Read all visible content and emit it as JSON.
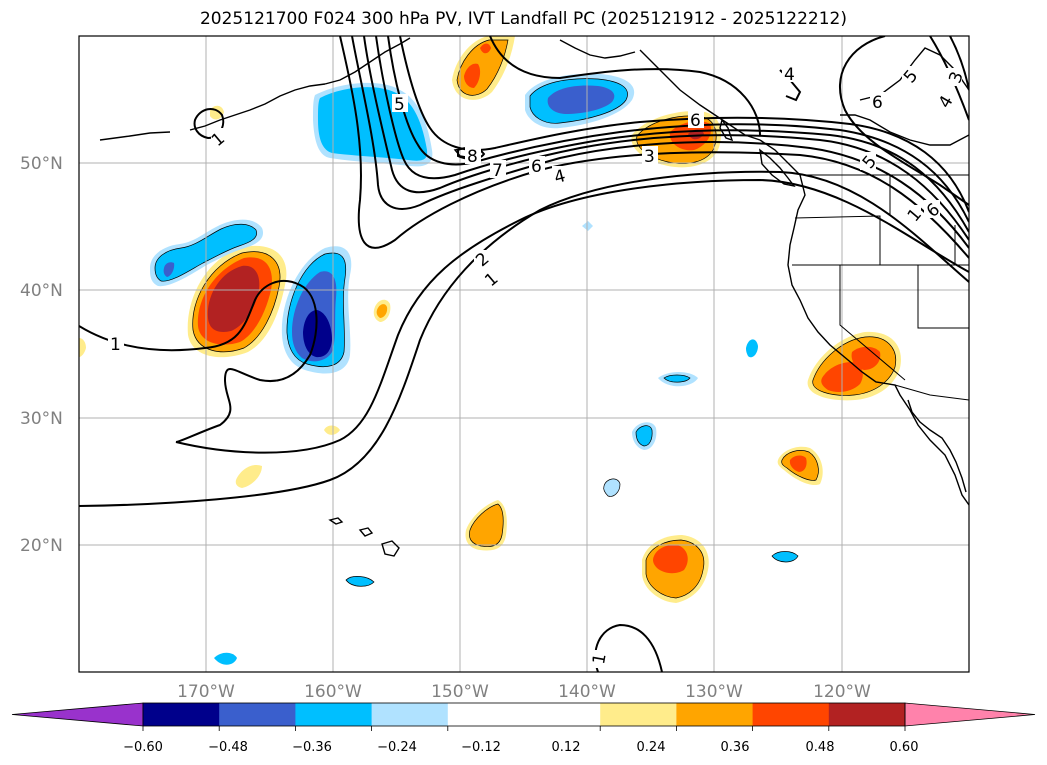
{
  "title": "2025121700 F024 300 hPa PV, IVT Landfall PC (2025121912 - 2025122212)",
  "chart_data": {
    "type": "map",
    "variables": [
      "300 hPa PV (contours)",
      "IVT Landfall PC (shaded)"
    ],
    "extent": {
      "lon_min": -180,
      "lon_max": -110,
      "lat_min": 10,
      "lat_max": 60
    },
    "lat_ticks": [
      {
        "value": 50,
        "label": "50°N"
      },
      {
        "value": 40,
        "label": "40°N"
      },
      {
        "value": 30,
        "label": "30°N"
      },
      {
        "value": 20,
        "label": "20°N"
      }
    ],
    "lon_ticks": [
      {
        "value": -170,
        "label": "170°W"
      },
      {
        "value": -160,
        "label": "160°W"
      },
      {
        "value": -150,
        "label": "150°W"
      },
      {
        "value": -140,
        "label": "140°W"
      },
      {
        "value": -130,
        "label": "130°W"
      },
      {
        "value": -120,
        "label": "120°W"
      }
    ],
    "colorbar": {
      "levels": [
        -0.72,
        -0.6,
        -0.48,
        -0.36,
        -0.24,
        -0.12,
        0.12,
        0.24,
        0.36,
        0.48,
        0.6,
        0.72
      ],
      "tick_labels": [
        "−0.60",
        "−0.48",
        "−0.36",
        "−0.24",
        "−0.12",
        "0.12",
        "0.24",
        "0.36",
        "0.48",
        "0.60"
      ],
      "colors": [
        "#9932cc",
        "#00008b",
        "#3a5fcd",
        "#00bfff",
        "#b0e2ff",
        "#ffffff",
        "#ffec8b",
        "#ffa500",
        "#ff4500",
        "#b22222",
        "#ff82ab"
      ],
      "extend": "both"
    },
    "pv_contour_labels": [
      "1",
      "1",
      "1",
      "2",
      "1",
      "3",
      "4",
      "4",
      "5",
      "6",
      "7",
      "8",
      "5",
      "6",
      "5",
      "4",
      "3",
      "6",
      "6",
      "1"
    ],
    "shaded_features": [
      {
        "sign": "positive",
        "max": 0.48,
        "center": [
          -167.5,
          39.0
        ]
      },
      {
        "sign": "negative",
        "min": -0.6,
        "center": [
          -161.5,
          37.0
        ]
      },
      {
        "sign": "negative",
        "min": -0.36,
        "center": [
          -167.0,
          43.0
        ]
      },
      {
        "sign": "negative",
        "min": -0.36,
        "center": [
          -157.0,
          53.0
        ]
      },
      {
        "sign": "negative",
        "min": -0.48,
        "center": [
          -139.5,
          55.0
        ]
      },
      {
        "sign": "positive",
        "max": 0.36,
        "center": [
          -149.0,
          57.0
        ]
      },
      {
        "sign": "positive",
        "max": 0.48,
        "center": [
          -131.5,
          52.0
        ]
      },
      {
        "sign": "positive",
        "max": 0.36,
        "center": [
          -118.0,
          33.5
        ]
      },
      {
        "sign": "positive",
        "max": 0.36,
        "center": [
          -123.0,
          26.5
        ]
      },
      {
        "sign": "positive",
        "max": 0.36,
        "center": [
          -133.0,
          19.0
        ]
      },
      {
        "sign": "positive",
        "max": 0.24,
        "center": [
          -148.5,
          21.0
        ]
      }
    ]
  }
}
